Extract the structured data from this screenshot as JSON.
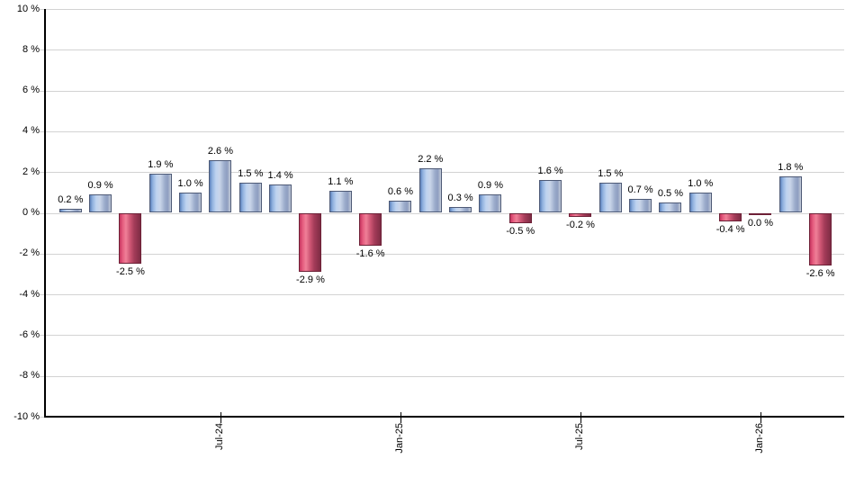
{
  "chart_data": {
    "type": "bar",
    "title": "",
    "unit": "%",
    "values": [
      0.2,
      0.9,
      -2.5,
      1.9,
      1.0,
      2.6,
      1.5,
      1.4,
      -2.9,
      1.1,
      -1.6,
      0.6,
      2.2,
      0.3,
      0.9,
      -0.5,
      1.6,
      -0.2,
      1.5,
      0.7,
      0.5,
      1.0,
      -0.4,
      0.0,
      1.8,
      -2.6
    ],
    "bar_labels": [
      "0.2 %",
      "0.9 %",
      "-2.5 %",
      "1.9 %",
      "1.0 %",
      "2.6 %",
      "1.5 %",
      "1.4 %",
      "-2.9 %",
      "1.1 %",
      "-1.6 %",
      "0.6 %",
      "2.2 %",
      "0.3 %",
      "0.9 %",
      "-0.5 %",
      "1.6 %",
      "-0.2 %",
      "1.5 %",
      "0.7 %",
      "0.5 %",
      "1.0 %",
      "-0.4 %",
      "0.0 %",
      "1.8 %",
      "-2.6 %"
    ],
    "y_ticks": [
      {
        "label": "10 %",
        "value": 10
      },
      {
        "label": "8 %",
        "value": 8
      },
      {
        "label": "6 %",
        "value": 6
      },
      {
        "label": "4 %",
        "value": 4
      },
      {
        "label": "2 %",
        "value": 2
      },
      {
        "label": "0 %",
        "value": 0
      },
      {
        "label": "-2 %",
        "value": -2
      },
      {
        "label": "-4 %",
        "value": -4
      },
      {
        "label": "-6 %",
        "value": -6
      },
      {
        "label": "-8 %",
        "value": -8
      },
      {
        "label": "-10 %",
        "value": -10
      }
    ],
    "x_ticks": [
      {
        "label": "Jul-24",
        "bar_index": 5
      },
      {
        "label": "Jan-25",
        "bar_index": 11
      },
      {
        "label": "Jul-25",
        "bar_index": 17
      },
      {
        "label": "Jan-26",
        "bar_index": 23
      }
    ],
    "ylim": [
      -10,
      10
    ],
    "grid": true,
    "legend": false,
    "colors": {
      "positive_bar_base": "#7b9fd4",
      "negative_bar_base": "#d23f68",
      "gridline": "#d3d3d3",
      "axis": "#000000",
      "text": "#000000",
      "background": "#ffffff"
    }
  }
}
